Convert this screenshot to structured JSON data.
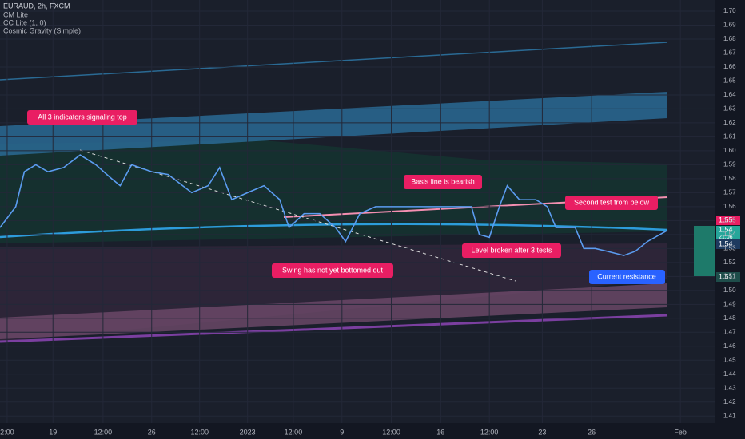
{
  "header": {
    "symbol": "EURAUD, 2h, FXCM",
    "indicators": [
      "CM Lite",
      "CC Lite (1, 0)",
      "Cosmic Gravity (Simple)"
    ]
  },
  "chart_data": {
    "type": "line",
    "color": "#5b9cf0",
    "x": [
      0,
      2.2,
      3.4,
      5,
      6.7,
      8.9,
      11.2,
      13.4,
      15.6,
      16.8,
      18.4,
      21.2,
      23.5,
      26.8,
      29.1,
      30.7,
      32.4,
      34.6,
      36.9,
      39.1,
      40.4,
      42.5,
      44.7,
      46.9,
      48.3,
      50.3,
      52.5,
      55.9,
      59.2,
      62.6,
      65.9,
      67,
      68.4,
      69.8,
      70.9,
      72.6,
      74.9,
      76.5,
      77.7,
      79.3,
      80.4,
      81.6,
      83.2,
      84.9,
      87.2,
      88.8,
      90.5,
      93.3
    ],
    "values": [
      1.545,
      1.56,
      1.585,
      1.59,
      1.585,
      1.588,
      1.597,
      1.59,
      1.58,
      1.575,
      1.59,
      1.585,
      1.583,
      1.57,
      1.575,
      1.588,
      1.565,
      1.57,
      1.575,
      1.565,
      1.545,
      1.555,
      1.555,
      1.545,
      1.535,
      1.555,
      1.56,
      1.56,
      1.56,
      1.56,
      1.56,
      1.54,
      1.538,
      1.56,
      1.575,
      1.565,
      1.565,
      1.56,
      1.545,
      1.545,
      1.545,
      1.53,
      1.53,
      1.528,
      1.525,
      1.528,
      1.535,
      1.543
    ],
    "xlim": [
      0,
      100
    ],
    "xticks": [
      {
        "value": 1,
        "label": "2:00"
      },
      {
        "value": 7.4,
        "label": "19"
      },
      {
        "value": 14.4,
        "label": "12:00"
      },
      {
        "value": 21.2,
        "label": "26"
      },
      {
        "value": 27.9,
        "label": "12:00"
      },
      {
        "value": 34.6,
        "label": "2023"
      },
      {
        "value": 41,
        "label": "12:00"
      },
      {
        "value": 47.8,
        "label": "9"
      },
      {
        "value": 54.7,
        "label": "12:00"
      },
      {
        "value": 61.6,
        "label": "16"
      },
      {
        "value": 68.4,
        "label": "12:00"
      },
      {
        "value": 75.8,
        "label": "23"
      },
      {
        "value": 82.7,
        "label": "26"
      },
      {
        "value": 95.1,
        "label": "Feb"
      }
    ],
    "ylim": [
      1.405,
      1.708
    ],
    "yticks": [
      1.41,
      1.42,
      1.43,
      1.44,
      1.45,
      1.46,
      1.47,
      1.48,
      1.49,
      {
        "value": 1.5,
        "label": "1.50"
      },
      1.51,
      1.52,
      1.53,
      1.54,
      1.55,
      1.56,
      1.57,
      1.58,
      1.59,
      {
        "value": 1.6,
        "label": "1.60"
      },
      1.61,
      1.62,
      1.63,
      1.64,
      1.65,
      1.66,
      1.67,
      1.68,
      1.69,
      {
        "value": 1.7,
        "label": "1.70"
      }
    ],
    "price_labels": [
      "1.55",
      "1.54",
      "21:06",
      "1.54",
      "1.51"
    ],
    "annotations": [
      "All 3 indicators signaling top",
      "Basis line is bearish",
      "Second test from below",
      "Level broken after 3 tests",
      "Swing has not yet bottomed out",
      "Current resistance"
    ]
  }
}
